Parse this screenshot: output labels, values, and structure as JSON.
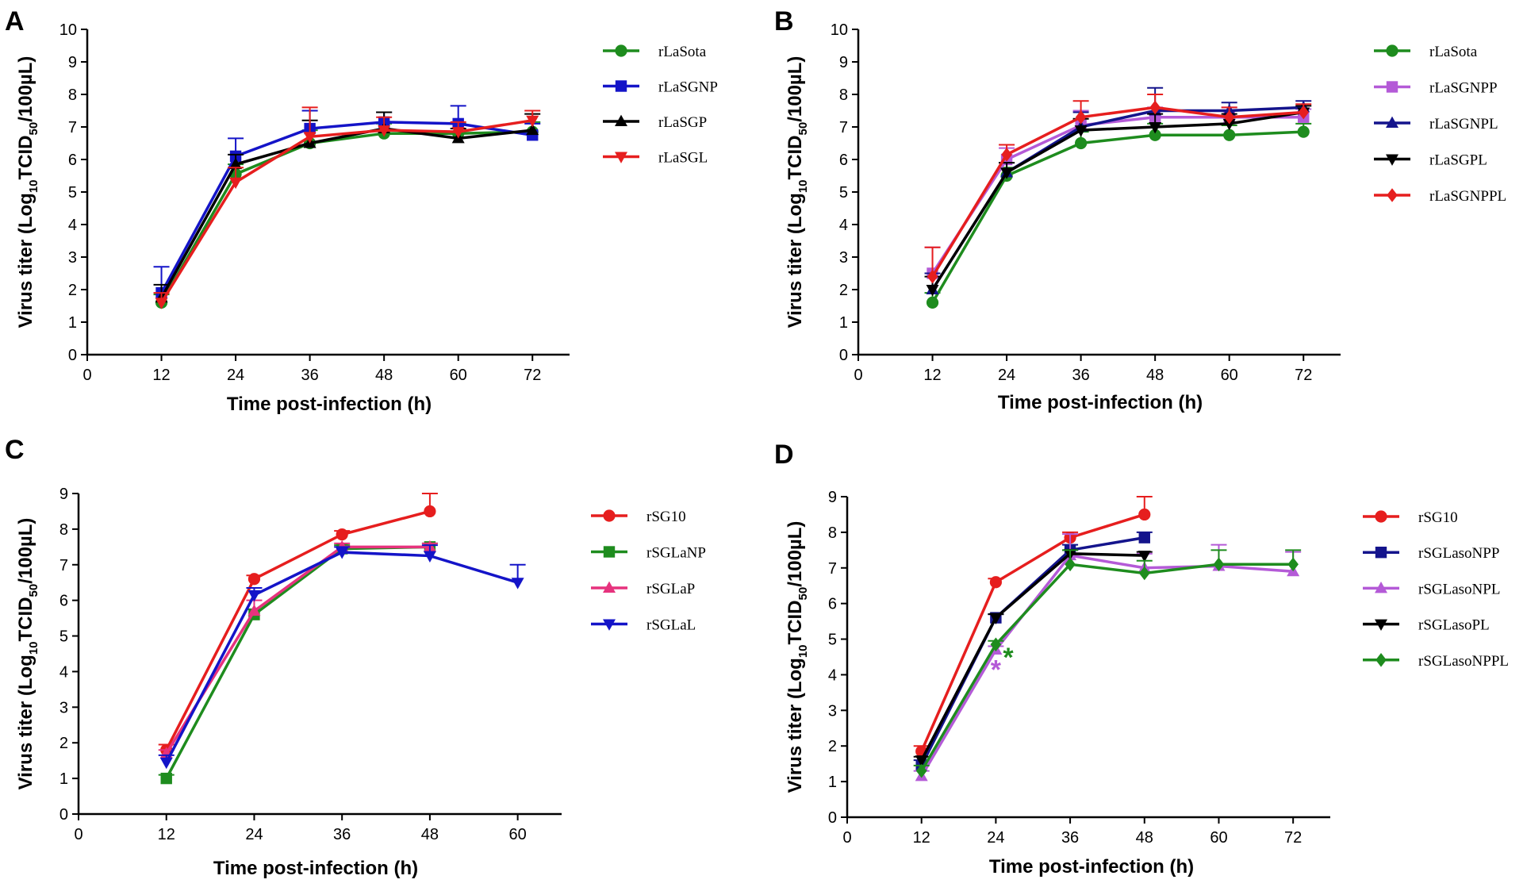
{
  "figure": {
    "panels": [
      {
        "letter": "A",
        "ylabel_main": "Virus titer (Log",
        "ylabel_sub": "10",
        "ylabel_rest": "TCID",
        "ylabel_sub2": "50",
        "ylabel_end": "/100µL)",
        "xlabel": "Time post-infection (h)"
      },
      {
        "letter": "B",
        "ylabel_main": "Virus titer (Log",
        "ylabel_sub": "10",
        "ylabel_rest": "TCID",
        "ylabel_sub2": "50",
        "ylabel_end": "/100µL)",
        "xlabel": "Time post-infection (h)"
      },
      {
        "letter": "C",
        "ylabel_main": "Virus titer (Log",
        "ylabel_sub": "10",
        "ylabel_rest": "TCID",
        "ylabel_sub2": "50",
        "ylabel_end": "/100µL)",
        "xlabel": "Time post-infection (h)"
      },
      {
        "letter": "D",
        "ylabel_main": "Virus titer (Log",
        "ylabel_sub": "10",
        "ylabel_rest": "TCID",
        "ylabel_sub2": "50",
        "ylabel_end": "/100µL)",
        "xlabel": "Time post-infection (h)"
      }
    ]
  },
  "chart_data": [
    {
      "panel": "A",
      "type": "line",
      "xlabel": "Time post-infection (h)",
      "ylabel": "Virus titer (Log10TCID50/100µL)",
      "xlim": [
        0,
        78
      ],
      "ylim": [
        0,
        10
      ],
      "xticks": [
        0,
        12,
        24,
        36,
        48,
        60,
        72
      ],
      "yticks": [
        0,
        1,
        2,
        3,
        4,
        5,
        6,
        7,
        8,
        9,
        10
      ],
      "x": [
        12,
        24,
        36,
        48,
        60,
        72
      ],
      "series": [
        {
          "name": "rLaSota",
          "color": "#1e8c1e",
          "marker": "circle",
          "values": [
            1.6,
            5.55,
            6.5,
            6.8,
            6.8,
            6.85
          ],
          "errors": [
            0.25,
            0.3,
            0.4,
            0.3,
            0.3,
            0.3
          ]
        },
        {
          "name": "rLaSGNP",
          "color": "#1414c8",
          "marker": "square",
          "values": [
            1.9,
            6.1,
            6.95,
            7.15,
            7.1,
            6.75
          ],
          "errors": [
            0.8,
            0.55,
            0.55,
            0.3,
            0.55,
            0.35
          ]
        },
        {
          "name": "rLaSGP",
          "color": "#000000",
          "marker": "triangle-up",
          "values": [
            1.75,
            5.85,
            6.5,
            6.95,
            6.65,
            6.9
          ],
          "errors": [
            0.4,
            0.3,
            0.7,
            0.5,
            0.3,
            0.5
          ]
        },
        {
          "name": "rLaSGL",
          "color": "#e61e1e",
          "marker": "triangle-down",
          "values": [
            1.6,
            5.3,
            6.7,
            6.9,
            6.85,
            7.2
          ],
          "errors": [
            0.3,
            0.45,
            0.9,
            0.4,
            0.3,
            0.3
          ]
        }
      ]
    },
    {
      "panel": "B",
      "type": "line",
      "xlabel": "Time post-infection (h)",
      "ylabel": "Virus titer (Log10TCID50/100µL)",
      "xlim": [
        0,
        78
      ],
      "ylim": [
        0,
        10
      ],
      "xticks": [
        0,
        12,
        24,
        36,
        48,
        60,
        72
      ],
      "yticks": [
        0,
        1,
        2,
        3,
        4,
        5,
        6,
        7,
        8,
        9,
        10
      ],
      "x": [
        12,
        24,
        36,
        48,
        60,
        72
      ],
      "series": [
        {
          "name": "rLaSota",
          "color": "#1e8c1e",
          "marker": "circle",
          "values": [
            1.6,
            5.5,
            6.5,
            6.75,
            6.75,
            6.85
          ],
          "errors": [
            0.3,
            0.25,
            0.35,
            0.35,
            0.3,
            0.25
          ]
        },
        {
          "name": "rLaSGNPP",
          "color": "#b45ad7",
          "marker": "square",
          "values": [
            2.5,
            6.0,
            7.05,
            7.3,
            7.3,
            7.3
          ],
          "errors": [
            0.8,
            0.35,
            0.45,
            0.3,
            0.3,
            0.25
          ]
        },
        {
          "name": "rLaSGNPL",
          "color": "#14148c",
          "marker": "triangle-up",
          "values": [
            2.0,
            5.6,
            7.0,
            7.5,
            7.5,
            7.6
          ],
          "errors": [
            0.5,
            0.3,
            0.45,
            0.7,
            0.25,
            0.2
          ]
        },
        {
          "name": "rLaSGPL",
          "color": "#000000",
          "marker": "triangle-down",
          "values": [
            2.0,
            5.6,
            6.9,
            7.0,
            7.1,
            7.45
          ],
          "errors": [
            0.4,
            0.3,
            0.35,
            0.4,
            0.3,
            0.2
          ]
        },
        {
          "name": "rLaSGNPPL",
          "color": "#e61e1e",
          "marker": "diamond",
          "values": [
            2.4,
            6.15,
            7.3,
            7.6,
            7.3,
            7.45
          ],
          "errors": [
            0.9,
            0.3,
            0.5,
            0.4,
            0.3,
            0.25
          ]
        }
      ]
    },
    {
      "panel": "C",
      "type": "line",
      "xlabel": "Time post-infection (h)",
      "ylabel": "Virus titer (Log10TCID50/100µL)",
      "xlim": [
        0,
        66
      ],
      "ylim": [
        0,
        9
      ],
      "xticks": [
        0,
        12,
        24,
        36,
        48,
        60
      ],
      "yticks": [
        0,
        1,
        2,
        3,
        4,
        5,
        6,
        7,
        8,
        9
      ],
      "x": [
        12,
        24,
        36,
        48,
        60
      ],
      "series": [
        {
          "name": "rSG10",
          "color": "#e61e1e",
          "marker": "circle",
          "values": [
            1.8,
            6.6,
            7.85,
            8.5,
            null
          ],
          "errors": [
            0.15,
            0.1,
            0.1,
            0.5,
            null
          ]
        },
        {
          "name": "rSGLaNP",
          "color": "#1e8c1e",
          "marker": "square",
          "values": [
            1.0,
            5.6,
            7.45,
            7.5,
            null
          ],
          "errors": [
            0.1,
            0.15,
            0.1,
            0.1,
            null
          ]
        },
        {
          "name": "rSGLaP",
          "color": "#e6327d",
          "marker": "triangle-up",
          "values": [
            1.7,
            5.7,
            7.5,
            7.5,
            null
          ],
          "errors": [
            0.1,
            0.3,
            0.1,
            0.1,
            null
          ]
        },
        {
          "name": "rSGLaL",
          "color": "#1414c8",
          "marker": "triangle-down",
          "values": [
            1.45,
            6.15,
            7.35,
            7.25,
            6.5
          ],
          "errors": [
            0.2,
            0.2,
            0.15,
            0.3,
            0.5
          ]
        }
      ]
    },
    {
      "panel": "D",
      "type": "line",
      "xlabel": "Time post-infection (h)",
      "ylabel": "Virus titer (Log10TCID50/100µL)",
      "xlim": [
        0,
        78
      ],
      "ylim": [
        0,
        9
      ],
      "xticks": [
        0,
        12,
        24,
        36,
        48,
        60,
        72
      ],
      "yticks": [
        0,
        1,
        2,
        3,
        4,
        5,
        6,
        7,
        8,
        9
      ],
      "x": [
        12,
        24,
        36,
        48,
        60,
        72
      ],
      "series": [
        {
          "name": "rSG10",
          "color": "#e61e1e",
          "marker": "circle",
          "values": [
            1.85,
            6.6,
            7.85,
            8.5,
            null,
            null
          ],
          "errors": [
            0.15,
            0.1,
            0.15,
            0.5,
            null,
            null
          ]
        },
        {
          "name": "rSGLasoNPP",
          "color": "#14148c",
          "marker": "square",
          "values": [
            1.45,
            5.6,
            7.5,
            7.85,
            null,
            null
          ],
          "errors": [
            0.15,
            0.1,
            0.15,
            0.15,
            null,
            null
          ]
        },
        {
          "name": "rSGLasoNPL",
          "color": "#b45ad7",
          "marker": "triangle-up",
          "values": [
            1.15,
            4.7,
            7.35,
            7.0,
            7.05,
            6.9
          ],
          "errors": [
            0.15,
            0.1,
            0.6,
            0.4,
            0.6,
            0.55
          ]
        },
        {
          "name": "rSGLasoPL",
          "color": "#000000",
          "marker": "triangle-down",
          "values": [
            1.6,
            5.6,
            7.4,
            7.35,
            null,
            null
          ],
          "errors": [
            0.1,
            0.1,
            0.1,
            0.1,
            null,
            null
          ]
        },
        {
          "name": "rSGLasoNPPL",
          "color": "#1e8c1e",
          "marker": "diamond",
          "values": [
            1.3,
            4.85,
            7.1,
            6.85,
            7.1,
            7.1
          ],
          "errors": [
            0.15,
            0.1,
            0.4,
            0.35,
            0.4,
            0.4
          ]
        }
      ],
      "annotations": [
        {
          "text": "*",
          "x": 24,
          "y": 4.2,
          "color": "#b45ad7"
        },
        {
          "text": "*",
          "x": 26,
          "y": 4.55,
          "color": "#1e8c1e"
        }
      ]
    }
  ]
}
